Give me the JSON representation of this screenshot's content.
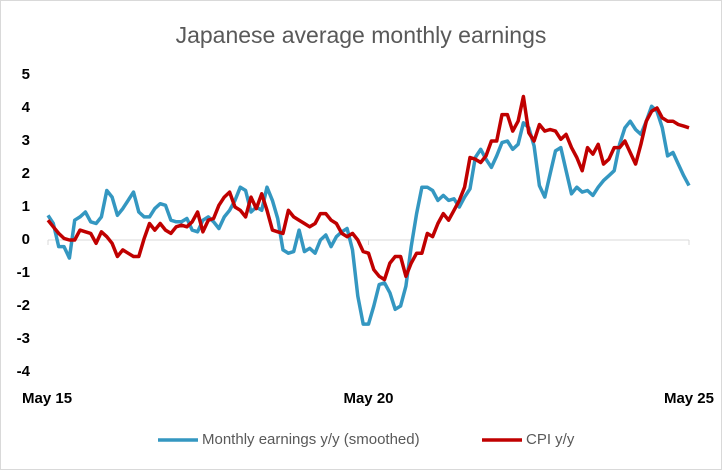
{
  "chart_data": {
    "type": "line",
    "title": "Japanese average monthly earnings",
    "categories": [
      "May 15",
      null,
      null,
      null,
      null,
      null,
      null,
      null,
      null,
      null,
      null,
      null,
      null,
      null,
      null,
      null,
      null,
      null,
      null,
      null,
      null,
      null,
      null,
      null,
      null,
      null,
      null,
      null,
      null,
      null,
      null,
      null,
      null,
      null,
      null,
      null,
      null,
      null,
      null,
      null,
      null,
      null,
      null,
      null,
      null,
      null,
      null,
      null,
      null,
      null,
      null,
      null,
      null,
      null,
      null,
      null,
      null,
      null,
      null,
      null,
      "May 20",
      null,
      null,
      null,
      null,
      null,
      null,
      null,
      null,
      null,
      null,
      null,
      null,
      null,
      null,
      null,
      null,
      null,
      null,
      null,
      null,
      null,
      null,
      null,
      null,
      null,
      null,
      null,
      null,
      null,
      null,
      null,
      null,
      null,
      null,
      null,
      null,
      null,
      null,
      null,
      null,
      null,
      null,
      null,
      null,
      null,
      null,
      null,
      null,
      null,
      null,
      null,
      null,
      null,
      null,
      null,
      null,
      null,
      null,
      null,
      "May 25"
    ],
    "series": [
      {
        "name": "Monthly earnings y/y (smoothed)",
        "color": "#3497c1",
        "values": [
          0.75,
          0.5,
          -0.2,
          -0.2,
          -0.55,
          0.6,
          0.7,
          0.85,
          0.55,
          0.5,
          0.7,
          1.5,
          1.3,
          0.75,
          0.95,
          1.2,
          1.45,
          0.85,
          0.7,
          0.7,
          0.95,
          1.1,
          1.05,
          0.6,
          0.55,
          0.55,
          0.65,
          0.3,
          0.25,
          0.6,
          0.7,
          0.55,
          0.35,
          0.7,
          0.9,
          1.2,
          1.6,
          1.5,
          0.85,
          1.0,
          0.9,
          1.6,
          1.2,
          0.65,
          -0.3,
          -0.4,
          -0.35,
          0.3,
          -0.35,
          -0.25,
          -0.4,
          0.0,
          0.15,
          -0.2,
          0.1,
          0.25,
          0.35,
          -0.3,
          -1.7,
          -2.55,
          -2.55,
          -2.0,
          -1.35,
          -1.3,
          -1.6,
          -2.1,
          -2.0,
          -1.4,
          -0.2,
          0.8,
          1.6,
          1.6,
          1.5,
          1.2,
          1.35,
          1.2,
          1.25,
          1.0,
          1.3,
          1.55,
          2.5,
          2.75,
          2.45,
          2.2,
          2.55,
          2.95,
          3.0,
          2.75,
          2.9,
          3.55,
          3.4,
          2.85,
          1.65,
          1.3,
          2.0,
          2.7,
          2.8,
          2.1,
          1.4,
          1.6,
          1.45,
          1.5,
          1.35,
          1.6,
          1.8,
          1.95,
          2.1,
          2.9,
          3.4,
          3.6,
          3.35,
          3.2,
          3.6,
          4.05,
          3.9,
          3.4,
          2.55,
          2.65,
          2.3,
          1.95,
          1.65
        ]
      },
      {
        "name": "CPI y/y",
        "color": "#c00000",
        "values": [
          0.6,
          0.4,
          0.2,
          0.05,
          0.0,
          0.0,
          0.3,
          0.25,
          0.2,
          -0.1,
          0.25,
          0.1,
          -0.1,
          -0.5,
          -0.3,
          -0.4,
          -0.5,
          -0.5,
          0.05,
          0.5,
          0.3,
          0.5,
          0.3,
          0.2,
          0.4,
          0.45,
          0.4,
          0.55,
          0.85,
          0.25,
          0.6,
          0.65,
          1.05,
          1.3,
          1.45,
          1.0,
          0.9,
          0.7,
          1.3,
          0.95,
          1.4,
          0.9,
          0.3,
          0.25,
          0.2,
          0.9,
          0.7,
          0.6,
          0.5,
          0.4,
          0.5,
          0.8,
          0.8,
          0.6,
          0.5,
          0.2,
          0.1,
          0.2,
          0.0,
          -0.35,
          -0.4,
          -0.9,
          -1.1,
          -1.2,
          -0.7,
          -0.5,
          -0.5,
          -1.1,
          -0.7,
          -0.4,
          -0.4,
          0.2,
          0.1,
          0.5,
          0.8,
          0.6,
          0.9,
          1.2,
          1.6,
          2.5,
          2.45,
          2.35,
          2.55,
          3.0,
          3.0,
          3.8,
          3.8,
          3.3,
          3.6,
          4.35,
          3.25,
          3.0,
          3.5,
          3.3,
          3.35,
          3.3,
          3.05,
          3.2,
          2.8,
          2.5,
          2.1,
          2.8,
          2.6,
          2.9,
          2.3,
          2.45,
          2.8,
          2.8,
          3.0,
          2.65,
          2.3,
          2.9,
          3.6,
          3.9,
          4.0,
          3.7,
          3.6,
          3.6,
          3.5,
          3.45,
          3.4
        ]
      }
    ],
    "ylim": [
      -4,
      5
    ],
    "yticks": [
      -4,
      -3,
      -2,
      -1,
      0,
      1,
      2,
      3,
      4,
      5
    ],
    "grid": false,
    "legend": "bottom"
  }
}
